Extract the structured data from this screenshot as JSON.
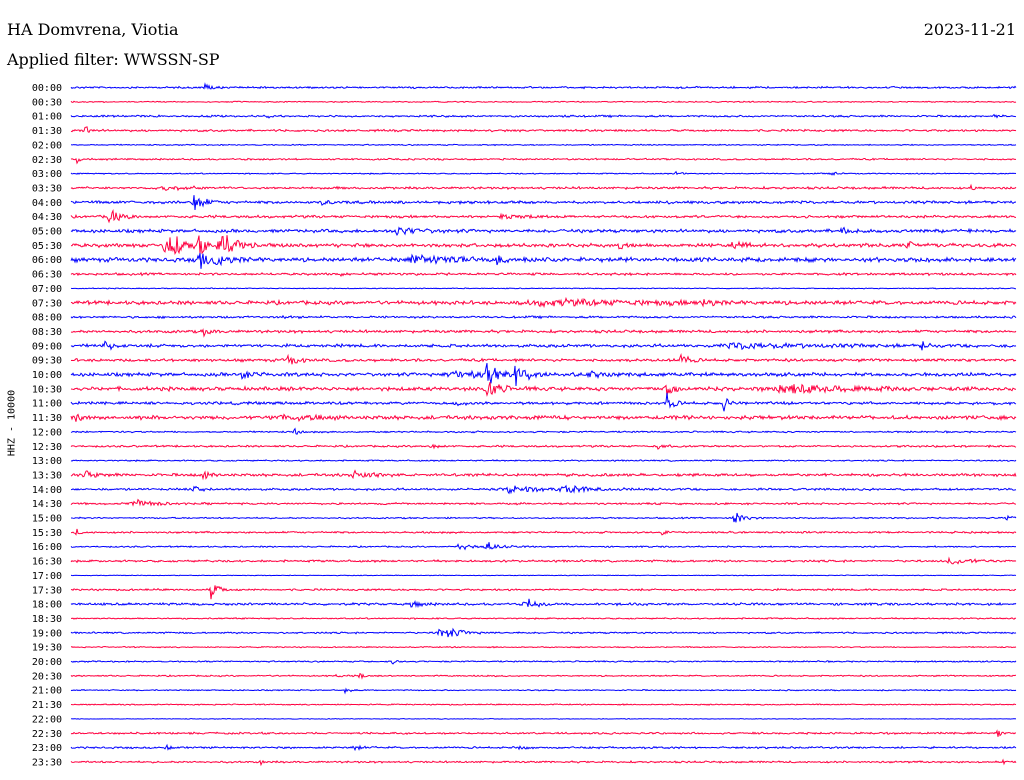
{
  "header": {
    "station": "HA Domvrena, Viotia",
    "date": "2023-11-21",
    "filter": "Applied filter: WWSSN-SP"
  },
  "chart_data": {
    "type": "line",
    "channel_label": "HHZ - 10000",
    "colors": [
      "#0000ff",
      "#ff0040"
    ],
    "rows": [
      "00:00",
      "00:30",
      "01:00",
      "01:30",
      "02:00",
      "02:30",
      "03:00",
      "03:30",
      "04:00",
      "04:30",
      "05:00",
      "05:30",
      "06:00",
      "06:30",
      "07:00",
      "07:30",
      "08:00",
      "08:30",
      "09:00",
      "09:30",
      "10:00",
      "10:30",
      "11:00",
      "11:30",
      "12:00",
      "12:30",
      "13:00",
      "13:30",
      "14:00",
      "14:30",
      "15:00",
      "15:30",
      "16:00",
      "16:30",
      "17:00",
      "17:30",
      "18:00",
      "18:30",
      "19:00",
      "19:30",
      "20:00",
      "20:30",
      "21:00",
      "21:30",
      "22:00",
      "22:30",
      "23:00",
      "23:30"
    ],
    "noise": [
      0.8,
      0.5,
      0.8,
      0.9,
      0.5,
      0.7,
      0.5,
      1.0,
      1.2,
      1.1,
      1.4,
      1.6,
      1.8,
      1.0,
      0.4,
      1.6,
      0.9,
      1.2,
      1.3,
      1.2,
      1.5,
      1.6,
      1.2,
      1.6,
      0.7,
      0.8,
      0.6,
      1.2,
      0.9,
      0.8,
      0.6,
      0.8,
      0.6,
      0.9,
      0.3,
      0.8,
      1.0,
      0.6,
      0.7,
      0.5,
      0.6,
      0.6,
      0.5,
      0.5,
      0.3,
      0.8,
      0.8,
      0.8
    ],
    "events": [
      {
        "row": 0,
        "x": 0.14,
        "amp": 6,
        "width": 0.006
      },
      {
        "row": 2,
        "x": 0.205,
        "amp": 3,
        "width": 0.005
      },
      {
        "row": 2,
        "x": 0.975,
        "amp": 4,
        "width": 0.004
      },
      {
        "row": 3,
        "x": 0.015,
        "amp": 8,
        "width": 0.004
      },
      {
        "row": 5,
        "x": 0.005,
        "amp": 5,
        "width": 0.004
      },
      {
        "row": 6,
        "x": 0.64,
        "amp": 3,
        "width": 0.005
      },
      {
        "row": 6,
        "x": 0.805,
        "amp": 3,
        "width": 0.005
      },
      {
        "row": 7,
        "x": 0.1,
        "amp": 3,
        "width": 0.02
      },
      {
        "row": 7,
        "x": 0.95,
        "amp": 3,
        "width": 0.005
      },
      {
        "row": 8,
        "x": 0.13,
        "amp": 14,
        "width": 0.008
      },
      {
        "row": 8,
        "x": 0.265,
        "amp": 3,
        "width": 0.01
      },
      {
        "row": 9,
        "x": 0.04,
        "amp": 9,
        "width": 0.01
      },
      {
        "row": 9,
        "x": 0.455,
        "amp": 4,
        "width": 0.012
      },
      {
        "row": 10,
        "x": 0.345,
        "amp": 5,
        "width": 0.02
      },
      {
        "row": 10,
        "x": 0.815,
        "amp": 5,
        "width": 0.006
      },
      {
        "row": 11,
        "x": 0.1,
        "amp": 18,
        "width": 0.015
      },
      {
        "row": 11,
        "x": 0.135,
        "amp": 22,
        "width": 0.004
      },
      {
        "row": 11,
        "x": 0.155,
        "amp": 18,
        "width": 0.015
      },
      {
        "row": 11,
        "x": 0.58,
        "amp": 5,
        "width": 0.006
      },
      {
        "row": 11,
        "x": 0.7,
        "amp": 5,
        "width": 0.012
      },
      {
        "row": 11,
        "x": 0.885,
        "amp": 7,
        "width": 0.005
      },
      {
        "row": 12,
        "x": 0.135,
        "amp": 20,
        "width": 0.004
      },
      {
        "row": 12,
        "x": 0.15,
        "amp": 7,
        "width": 0.02
      },
      {
        "row": 12,
        "x": 0.36,
        "amp": 4,
        "width": 0.05
      },
      {
        "row": 12,
        "x": 0.45,
        "amp": 4,
        "width": 0.01
      },
      {
        "row": 12,
        "x": 0.77,
        "amp": 4,
        "width": 0.006
      },
      {
        "row": 13,
        "x": 0.285,
        "amp": 2,
        "width": 0.005
      },
      {
        "row": 15,
        "x": 0.5,
        "amp": 3,
        "width": 0.12
      },
      {
        "row": 15,
        "x": 0.67,
        "amp": 5,
        "width": 0.01
      },
      {
        "row": 16,
        "x": 0.225,
        "amp": 3,
        "width": 0.004
      },
      {
        "row": 17,
        "x": 0.14,
        "amp": 4,
        "width": 0.008
      },
      {
        "row": 18,
        "x": 0.035,
        "amp": 7,
        "width": 0.007
      },
      {
        "row": 18,
        "x": 0.7,
        "amp": 3,
        "width": 0.08
      },
      {
        "row": 18,
        "x": 0.9,
        "amp": 5,
        "width": 0.004
      },
      {
        "row": 19,
        "x": 0.23,
        "amp": 9,
        "width": 0.008
      },
      {
        "row": 19,
        "x": 0.645,
        "amp": 7,
        "width": 0.008
      },
      {
        "row": 20,
        "x": 0.18,
        "amp": 4,
        "width": 0.015
      },
      {
        "row": 20,
        "x": 0.4,
        "amp": 5,
        "width": 0.03
      },
      {
        "row": 20,
        "x": 0.44,
        "amp": 20,
        "width": 0.008
      },
      {
        "row": 20,
        "x": 0.47,
        "amp": 14,
        "width": 0.012
      },
      {
        "row": 20,
        "x": 0.55,
        "amp": 3,
        "width": 0.02
      },
      {
        "row": 21,
        "x": 0.44,
        "amp": 14,
        "width": 0.01
      },
      {
        "row": 21,
        "x": 0.63,
        "amp": 10,
        "width": 0.005
      },
      {
        "row": 21,
        "x": 0.75,
        "amp": 5,
        "width": 0.06
      },
      {
        "row": 22,
        "x": 0.41,
        "amp": 6,
        "width": 0.004
      },
      {
        "row": 22,
        "x": 0.63,
        "amp": 12,
        "width": 0.006
      },
      {
        "row": 22,
        "x": 0.69,
        "amp": 10,
        "width": 0.008
      },
      {
        "row": 23,
        "x": 0.005,
        "amp": 5,
        "width": 0.005
      },
      {
        "row": 23,
        "x": 0.22,
        "amp": 3,
        "width": 0.04
      },
      {
        "row": 24,
        "x": 0.235,
        "amp": 6,
        "width": 0.004
      },
      {
        "row": 25,
        "x": 0.38,
        "amp": 3,
        "width": 0.008
      },
      {
        "row": 25,
        "x": 0.62,
        "amp": 3,
        "width": 0.008
      },
      {
        "row": 27,
        "x": 0.015,
        "amp": 5,
        "width": 0.01
      },
      {
        "row": 27,
        "x": 0.14,
        "amp": 4,
        "width": 0.01
      },
      {
        "row": 27,
        "x": 0.3,
        "amp": 4,
        "width": 0.015
      },
      {
        "row": 28,
        "x": 0.13,
        "amp": 3,
        "width": 0.01
      },
      {
        "row": 28,
        "x": 0.46,
        "amp": 4,
        "width": 0.03
      },
      {
        "row": 28,
        "x": 0.52,
        "amp": 4,
        "width": 0.03
      },
      {
        "row": 29,
        "x": 0.065,
        "amp": 5,
        "width": 0.02
      },
      {
        "row": 30,
        "x": 0.7,
        "amp": 8,
        "width": 0.01
      },
      {
        "row": 30,
        "x": 0.99,
        "amp": 5,
        "width": 0.005
      },
      {
        "row": 31,
        "x": 0.005,
        "amp": 4,
        "width": 0.004
      },
      {
        "row": 31,
        "x": 0.625,
        "amp": 4,
        "width": 0.004
      },
      {
        "row": 32,
        "x": 0.41,
        "amp": 3,
        "width": 0.02
      },
      {
        "row": 32,
        "x": 0.44,
        "amp": 5,
        "width": 0.01
      },
      {
        "row": 33,
        "x": 0.93,
        "amp": 4,
        "width": 0.02
      },
      {
        "row": 35,
        "x": 0.148,
        "amp": 12,
        "width": 0.006
      },
      {
        "row": 36,
        "x": 0.36,
        "amp": 4,
        "width": 0.01
      },
      {
        "row": 36,
        "x": 0.48,
        "amp": 9,
        "width": 0.01
      },
      {
        "row": 38,
        "x": 0.39,
        "amp": 8,
        "width": 0.018
      },
      {
        "row": 40,
        "x": 0.34,
        "amp": 3,
        "width": 0.004
      },
      {
        "row": 41,
        "x": 0.28,
        "amp": 3,
        "width": 0.004
      },
      {
        "row": 41,
        "x": 0.305,
        "amp": 4,
        "width": 0.004
      },
      {
        "row": 42,
        "x": 0.29,
        "amp": 4,
        "width": 0.004
      },
      {
        "row": 45,
        "x": 0.98,
        "amp": 4,
        "width": 0.004
      },
      {
        "row": 46,
        "x": 0.1,
        "amp": 3,
        "width": 0.005
      },
      {
        "row": 46,
        "x": 0.3,
        "amp": 3,
        "width": 0.008
      },
      {
        "row": 46,
        "x": 0.47,
        "amp": 3,
        "width": 0.008
      },
      {
        "row": 47,
        "x": 0.2,
        "amp": 3,
        "width": 0.003
      },
      {
        "row": 47,
        "x": 0.985,
        "amp": 4,
        "width": 0.003
      }
    ]
  }
}
